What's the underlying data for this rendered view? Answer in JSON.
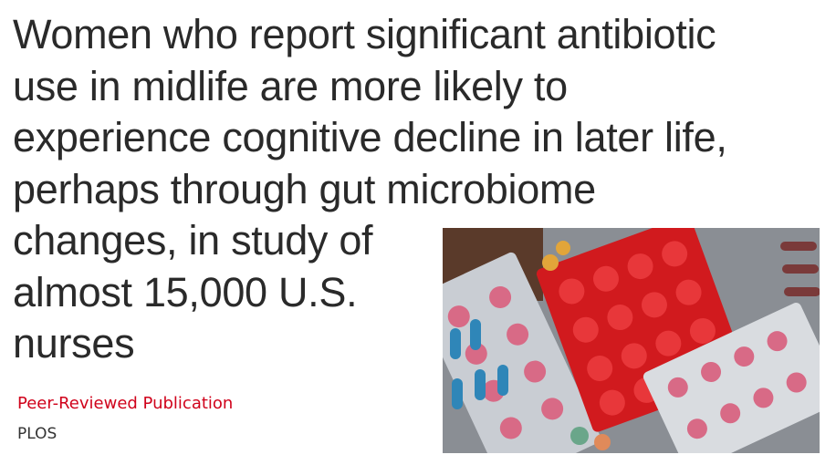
{
  "headline_lines": [
    "Women who report significant antibiotic",
    "use in midlife are more likely to",
    "experience cognitive decline in later life,",
    "perhaps through gut microbiome",
    "changes, in study of",
    "almost 15,000 U.S.",
    "nurses"
  ],
  "label": "Peer-Reviewed Publication",
  "source": "PLOS"
}
